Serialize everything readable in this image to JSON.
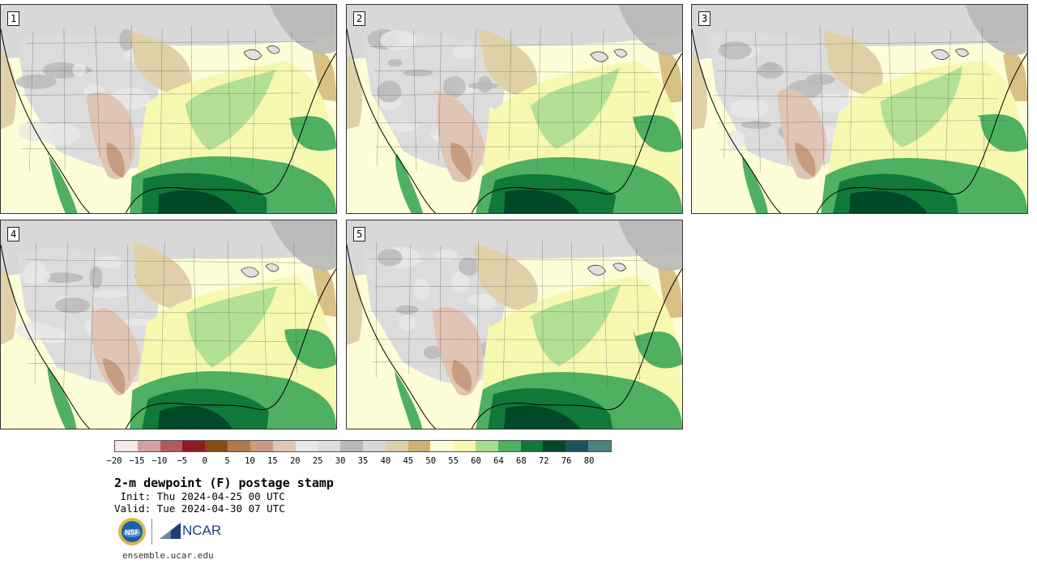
{
  "stamps": [
    {
      "label": "1",
      "variant": 0
    },
    {
      "label": "2",
      "variant": 1
    },
    {
      "label": "3",
      "variant": 2
    },
    {
      "label": "4",
      "variant": 3
    },
    {
      "label": "5",
      "variant": 4
    }
  ],
  "colorbar": {
    "colors": [
      "#f6e8e8",
      "#d4a0a0",
      "#b05c5c",
      "#8e1a22",
      "#8a4a14",
      "#b07850",
      "#c89c80",
      "#e0c4b4",
      "#e8e8e8",
      "#dcdcdc",
      "#b8b8b8",
      "#d8d8d8",
      "#e0d0a8",
      "#d0b070",
      "#fdfdd8",
      "#f6f8b0",
      "#a8dc90",
      "#4eb060",
      "#107838",
      "#004828",
      "#1e5060",
      "#508080"
    ],
    "ticks": [
      "−20",
      "−15",
      "−10",
      "−5",
      "0",
      "5",
      "10",
      "15",
      "20",
      "25",
      "30",
      "35",
      "40",
      "45",
      "50",
      "55",
      "60",
      "64",
      "68",
      "72",
      "76",
      "80"
    ]
  },
  "title": "2-m dewpoint (F) postage stamp",
  "init_label": " Init: Thu 2024-04-25 00 UTC",
  "valid_label": "Valid: Tue 2024-04-30 07 UTC",
  "logos": {
    "nsf": "NSF",
    "ncar": "NCAR"
  },
  "site": "ensemble.ucar.edu"
}
